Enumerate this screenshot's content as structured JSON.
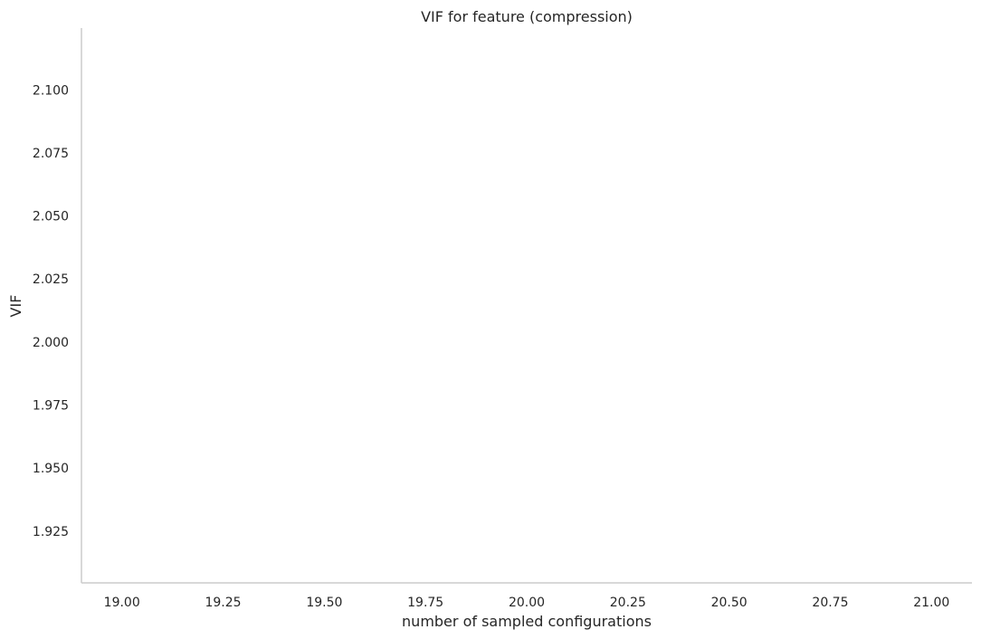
{
  "chart_data": {
    "type": "line",
    "title": "VIF for feature (compression)",
    "xlabel": "number of sampled configurations",
    "ylabel": "VIF",
    "xlim": [
      18.9,
      21.1
    ],
    "ylim": [
      1.9045,
      2.1245
    ],
    "x_ticks": [
      19.0,
      19.25,
      19.5,
      19.75,
      20.0,
      20.25,
      20.5,
      20.75,
      21.0
    ],
    "x_tick_labels": [
      "19.00",
      "19.25",
      "19.50",
      "19.75",
      "20.00",
      "20.25",
      "20.50",
      "20.75",
      "21.00"
    ],
    "y_ticks": [
      1.925,
      1.95,
      1.975,
      2.0,
      2.025,
      2.05,
      2.075,
      2.1
    ],
    "y_tick_labels": [
      "1.925",
      "1.950",
      "1.975",
      "2.000",
      "2.025",
      "2.050",
      "2.075",
      "2.100"
    ],
    "series": [],
    "grid": false,
    "legend": "none",
    "spine_color": "#cccccc"
  }
}
